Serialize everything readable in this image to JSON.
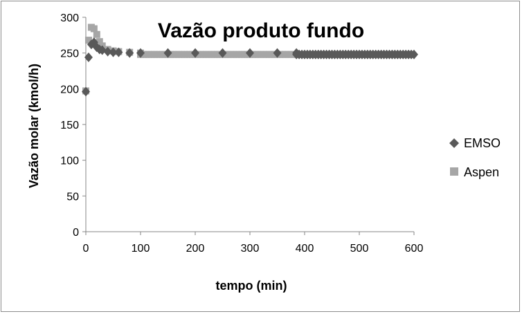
{
  "chart_data": {
    "type": "scatter",
    "title": "Vazão produto fundo",
    "xlabel": "tempo (min)",
    "ylabel": "Vazão molar  (kmol/h)",
    "xlim": [
      0,
      600
    ],
    "ylim": [
      0,
      300
    ],
    "x_ticks": [
      0,
      100,
      200,
      300,
      400,
      500,
      600
    ],
    "y_ticks": [
      0,
      50,
      100,
      150,
      200,
      250,
      300
    ],
    "grid": false,
    "legend_position": "right",
    "series": [
      {
        "name": "EMSO",
        "color": "#595959",
        "marker": "diamond",
        "x": [
          0,
          5,
          10,
          15,
          20,
          25,
          30,
          40,
          50,
          60,
          80,
          100,
          150,
          200,
          250,
          300,
          350,
          385
        ],
        "y": [
          196,
          244,
          262,
          265,
          258,
          255,
          254,
          252,
          251,
          251,
          250,
          250,
          250,
          250,
          250,
          250,
          250,
          250
        ],
        "dense_segment": {
          "x_start": 385,
          "x_end": 600,
          "step": 5,
          "y": 248
        }
      },
      {
        "name": "Aspen",
        "color": "#a6a6a6",
        "marker": "square",
        "x": [
          0,
          5,
          10,
          15,
          20,
          25,
          30,
          40,
          50,
          60,
          80,
          100
        ],
        "y": [
          197,
          268,
          286,
          284,
          276,
          266,
          260,
          255,
          253,
          252,
          251,
          250
        ],
        "dense_segment": {
          "x_start": 100,
          "x_end": 595,
          "step": 5,
          "y": 248
        }
      }
    ]
  }
}
